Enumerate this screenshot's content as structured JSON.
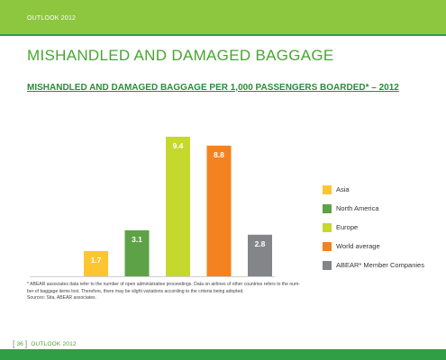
{
  "header": {
    "report": "OUTLOOK 2012"
  },
  "section_title": "MISHANDLED AND DAMAGED BAGGAGE",
  "chart_data": {
    "type": "bar",
    "title": "MISHANDLED AND DAMAGED BAGGAGE PER 1,000 PASSENGERS BOARDED* – 2012",
    "categories": [
      "Asia",
      "North America",
      "Europe",
      "World average",
      "ABEAR* Member Companies"
    ],
    "values": [
      1.7,
      3.1,
      9.4,
      8.8,
      2.8
    ],
    "value_labels": [
      "1.7",
      "3.1",
      "9.4",
      "8.8",
      "2.8"
    ],
    "colors": [
      "#fdc52f",
      "#5ea247",
      "#c5d82e",
      "#f58220",
      "#848589"
    ],
    "ylim": [
      0,
      10
    ],
    "grid": false,
    "legend_position": "right",
    "xlabel": "",
    "ylabel": ""
  },
  "footnote": {
    "line1": "* ABEAR associates data refer to the number of open administrative proceedings. Data on airlines of other countries refers to the num-",
    "line2": "ber of baggage items lost. Therefore, there may be slight variations according to the criteria being adopted.",
    "sources": "Sources: Sita, ABEAR associates."
  },
  "footer": {
    "page": "36",
    "report": "OUTLOOK 2012"
  }
}
